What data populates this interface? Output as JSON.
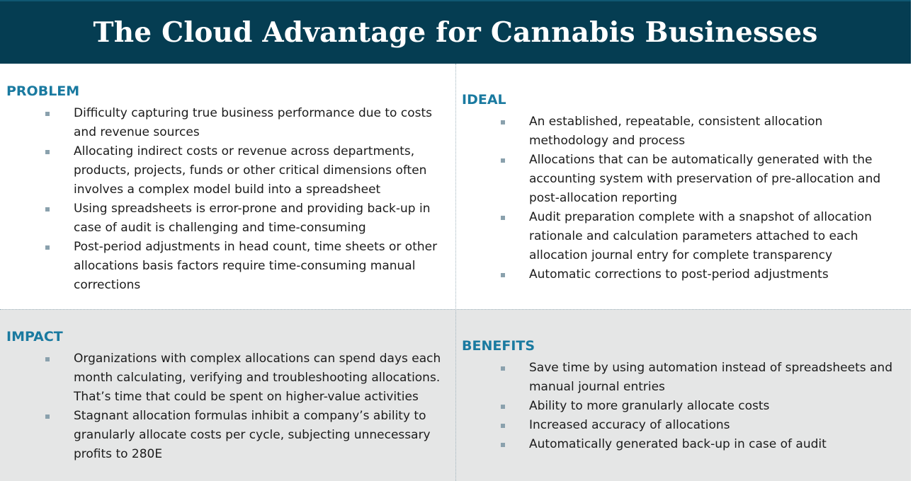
{
  "title": "The Cloud Advantage for Cannabis Businesses",
  "colors": {
    "header_bg": "#053d52",
    "heading": "#1a7aa0",
    "bottom_bg": "#e5e6e6",
    "bullet": "#8aa1ad"
  },
  "problem": {
    "heading": "PROBLEM",
    "items": [
      "Difficulty capturing true business performance due to costs and revenue sources",
      "Allocating indirect costs or revenue across departments, products, projects, funds or other critical dimensions often involves a complex model build into a spreadsheet",
      "Using spreadsheets is error-prone and providing back-up in case of audit is challenging and time-consuming",
      "Post-period adjustments in head count, time sheets or other allocations basis factors require time-consuming manual corrections"
    ]
  },
  "ideal": {
    "heading": "IDEAL",
    "items": [
      "An established, repeatable, consistent allocation methodology and process",
      "Allocations that can be automatically generated with the accounting system with preservation of pre-allocation and post-allocation reporting",
      "Audit preparation complete with a snapshot of allocation rationale and calculation parameters attached to each allocation journal entry for complete transparency",
      "Automatic corrections to post-period adjustments"
    ]
  },
  "impact": {
    "heading": "IMPACT",
    "items": [
      "Organizations with complex allocations can spend days each month calculating, verifying and troubleshooting allocations. That’s time that could be spent on higher-value activities",
      "Stagnant allocation formulas inhibit a company’s ability to granularly allocate costs per cycle, subjecting unnecessary profits to 280E"
    ]
  },
  "benefits": {
    "heading": "BENEFITS",
    "items": [
      "Save time by using automation instead of spreadsheets and manual journal entries",
      "Ability to more granularly allocate costs",
      "Increased accuracy of allocations",
      "Automatically generated back-up in case of audit"
    ]
  }
}
